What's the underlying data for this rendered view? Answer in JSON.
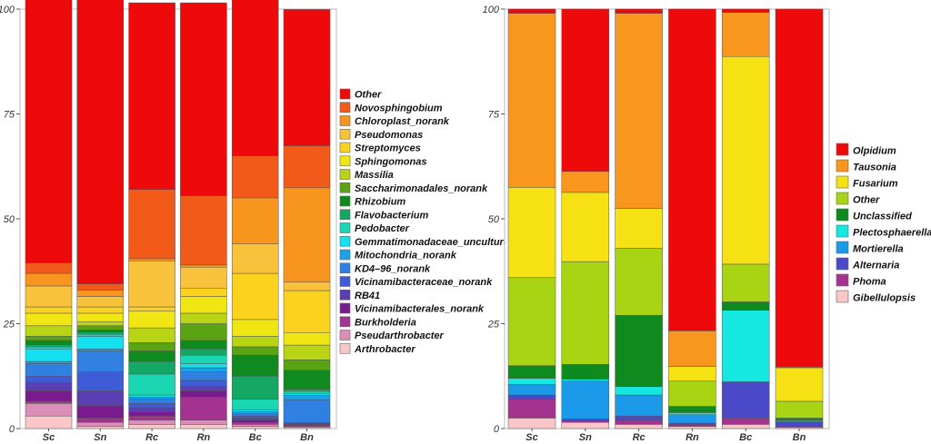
{
  "chart_data": [
    {
      "type": "bar",
      "stacked": true,
      "categories": [
        "Sc",
        "Sn",
        "Rc",
        "Rn",
        "Bc",
        "Bn"
      ],
      "ylim": [
        0,
        100
      ],
      "yticks": [
        "0",
        "25",
        "50",
        "75",
        "100"
      ],
      "grid": false,
      "legend_position": "right",
      "series": [
        {
          "name": "Arthrobacter",
          "color": "#f9c7c7",
          "values": [
            3,
            0.5,
            1,
            1,
            0.5,
            0.3
          ]
        },
        {
          "name": "Pseudarthrobacter",
          "color": "#d98fb8",
          "values": [
            3,
            1,
            1,
            1,
            0.5,
            0.2
          ]
        },
        {
          "name": "Burkholderia",
          "color": "#a3338f",
          "values": [
            0.5,
            1,
            1,
            5.5,
            0.5,
            0.3
          ]
        },
        {
          "name": "Vicinamibacterales_norank",
          "color": "#7a1a8f",
          "values": [
            2.5,
            3,
            1,
            1.5,
            0.5,
            0.2
          ]
        },
        {
          "name": "RB41",
          "color": "#5a3eb3",
          "values": [
            2,
            3.5,
            1,
            1,
            0.5,
            0.2
          ]
        },
        {
          "name": "Vicinamibacteraceae_norank",
          "color": "#3f5cd6",
          "values": [
            1.5,
            4.5,
            1,
            1.5,
            0.5,
            0.2
          ]
        },
        {
          "name": "KD4–96_norank",
          "color": "#2f80e0",
          "values": [
            3,
            5,
            1,
            2,
            0.5,
            5.5
          ]
        },
        {
          "name": "Mitochondria_norank",
          "color": "#1aa3e8",
          "values": [
            0.5,
            0.5,
            0.5,
            1,
            0.5,
            1
          ]
        },
        {
          "name": "Gemmatimonadaceae_uncultured",
          "color": "#14e0f0",
          "values": [
            3,
            3,
            0.5,
            1,
            0.5,
            0.5
          ]
        },
        {
          "name": "Pedobacter",
          "color": "#1ad6b3",
          "values": [
            0.5,
            0.5,
            5,
            2,
            2.5,
            0.5
          ]
        },
        {
          "name": "Flavobacterium",
          "color": "#14a864",
          "values": [
            0.5,
            0.5,
            3,
            1.5,
            5.5,
            0.5
          ]
        },
        {
          "name": "Rhizobium",
          "color": "#0e8a1f",
          "values": [
            1,
            0.5,
            2.5,
            2,
            5,
            4.5
          ]
        },
        {
          "name": "Saccharimonadales_norank",
          "color": "#5aa314",
          "values": [
            1,
            1,
            2,
            4,
            2,
            2.5
          ]
        },
        {
          "name": "Massilia",
          "color": "#b8d414",
          "values": [
            2.5,
            1,
            3.5,
            2.5,
            2.5,
            3.5
          ]
        },
        {
          "name": "Sphingomonas",
          "color": "#f0e614",
          "values": [
            3,
            2,
            4,
            4,
            4,
            3
          ]
        },
        {
          "name": "Streptomyces",
          "color": "#fbd21e",
          "values": [
            1.5,
            1.5,
            1,
            2,
            11,
            10
          ]
        },
        {
          "name": "Pseudomonas",
          "color": "#f9c23c",
          "values": [
            5,
            2.5,
            11,
            5,
            7,
            2
          ]
        },
        {
          "name": "Chloroplast_norank",
          "color": "#f8951e",
          "values": [
            3,
            1.5,
            0.5,
            0.5,
            11,
            22.5
          ]
        },
        {
          "name": "Novosphingobium",
          "color": "#f25a1a",
          "values": [
            2.5,
            1.5,
            16.5,
            16.5,
            10,
            10
          ]
        },
        {
          "name": "Other",
          "color": "#ee0a0a",
          "values": [
            64.5,
            70,
            44.5,
            46,
            37.5,
            32.5
          ]
        }
      ]
    },
    {
      "type": "bar",
      "stacked": true,
      "categories": [
        "Sc",
        "Sn",
        "Rc",
        "Rn",
        "Bc",
        "Bn"
      ],
      "ylim": [
        0,
        100
      ],
      "yticks": [
        "0",
        "25",
        "50",
        "75",
        "100"
      ],
      "grid": false,
      "legend_position": "right",
      "series": [
        {
          "name": "Gibellulopsis",
          "color": "#f9c7c7",
          "values": [
            2.5,
            1.5,
            1,
            0.5,
            1,
            0.3
          ]
        },
        {
          "name": "Phoma",
          "color": "#a3338f",
          "values": [
            4.5,
            0.3,
            1,
            0.3,
            1.5,
            0.3
          ]
        },
        {
          "name": "Alternaria",
          "color": "#4a4ac8",
          "values": [
            1,
            0.5,
            1,
            0.5,
            8.5,
            1
          ]
        },
        {
          "name": "Mortierella",
          "color": "#1a9ae8",
          "values": [
            2.5,
            9,
            5,
            2,
            0.2,
            0.2
          ]
        },
        {
          "name": "Plectosphaerella",
          "color": "#14e8e0",
          "values": [
            1.5,
            0.5,
            2,
            0.5,
            17,
            0.2
          ]
        },
        {
          "name": "Unclassified",
          "color": "#0e8a1f",
          "values": [
            3,
            3.5,
            17,
            1.5,
            2,
            0.5
          ]
        },
        {
          "name": "Other",
          "color": "#a8d414",
          "values": [
            21,
            24.5,
            16,
            6,
            9,
            4
          ]
        },
        {
          "name": "Fusarium",
          "color": "#f6e214",
          "values": [
            21.5,
            16.5,
            9.5,
            3.5,
            49.5,
            8
          ]
        },
        {
          "name": "Tausonia",
          "color": "#f8961e",
          "values": [
            41.5,
            5,
            46.5,
            8.5,
            10.5,
            0.2
          ]
        },
        {
          "name": "Olpidium",
          "color": "#ee0a0a",
          "values": [
            1,
            38.7,
            1,
            76.7,
            0.8,
            85.3
          ]
        }
      ]
    }
  ]
}
